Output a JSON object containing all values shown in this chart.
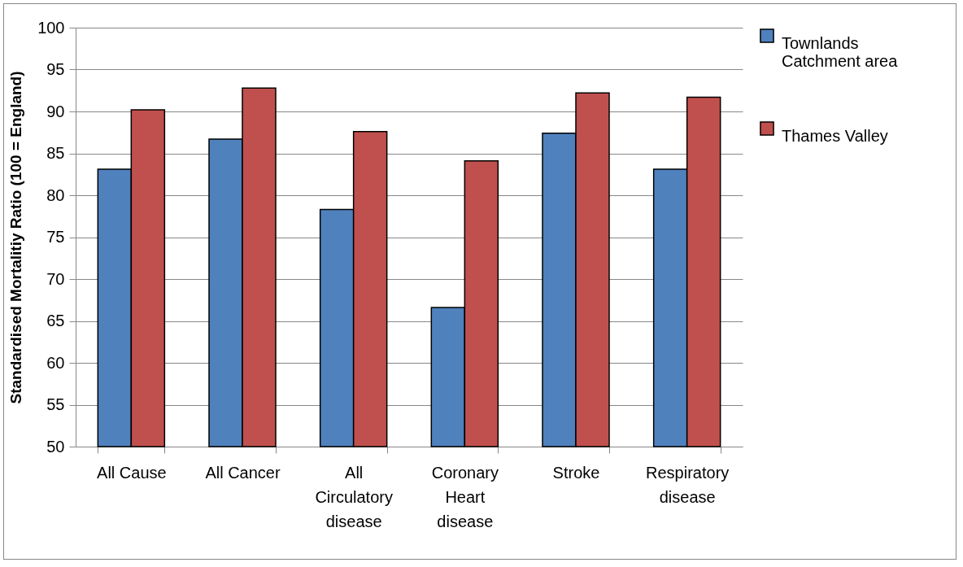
{
  "chart_data": {
    "type": "bar",
    "ylabel": "Standardised Mortalitiy Ratio (100 = England)",
    "categories": [
      "All Cause",
      "All Cancer",
      "All Circulatory disease",
      "Coronary Heart disease",
      "Stroke",
      "Respiratory disease"
    ],
    "series": [
      {
        "name": "Townlands Catchment area",
        "color": "#4f81bd",
        "values": [
          83.1,
          86.7,
          78.3,
          66.6,
          87.4,
          83.1
        ]
      },
      {
        "name": "Thames Valley",
        "color": "#c0504d",
        "values": [
          90.2,
          92.8,
          87.6,
          84.1,
          92.2,
          91.7
        ]
      }
    ],
    "ylim": [
      50,
      100
    ],
    "yticks": [
      50,
      55,
      60,
      65,
      70,
      75,
      80,
      85,
      90,
      95,
      100
    ],
    "grid": "y",
    "legend": "right"
  }
}
